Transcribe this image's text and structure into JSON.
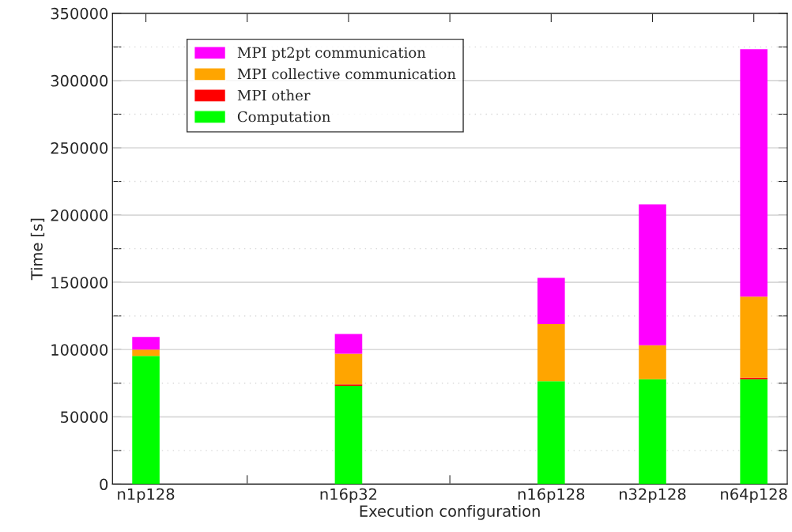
{
  "chart_data": {
    "type": "bar",
    "stacked": true,
    "xlabel": "Execution configuration",
    "ylabel": "Time [s]",
    "categories": [
      "n1p128",
      null,
      "n16p32",
      null,
      "n16p128",
      "n32p128",
      "n64p128"
    ],
    "ylim": [
      0,
      350000
    ],
    "yticks": [
      0,
      {
        "value": 25000,
        "label": null
      },
      50000,
      {
        "value": 75000,
        "label": null
      },
      100000,
      {
        "value": 125000,
        "label": null
      },
      150000,
      {
        "value": 175000,
        "label": null
      },
      200000,
      {
        "value": 225000,
        "label": null
      },
      250000,
      {
        "value": 275000,
        "label": null
      },
      300000,
      {
        "value": 325000,
        "label": null
      },
      350000
    ],
    "series": [
      {
        "name": "Computation",
        "color": "#00ff00",
        "values": [
          95300,
          null,
          73100,
          null,
          76500,
          78000,
          78000
        ]
      },
      {
        "name": "MPI other",
        "color": "#ff0000",
        "values": [
          0,
          null,
          1000,
          null,
          0,
          0,
          1200
        ]
      },
      {
        "name": "MPI collective communication",
        "color": "#ffa500",
        "values": [
          4700,
          null,
          22800,
          null,
          42500,
          25300,
          60200
        ]
      },
      {
        "name": "MPI pt2pt communication",
        "color": "#ff00ff",
        "values": [
          9400,
          null,
          14700,
          null,
          34300,
          104700,
          183900
        ]
      }
    ],
    "grid": "y",
    "legend": "top left"
  }
}
